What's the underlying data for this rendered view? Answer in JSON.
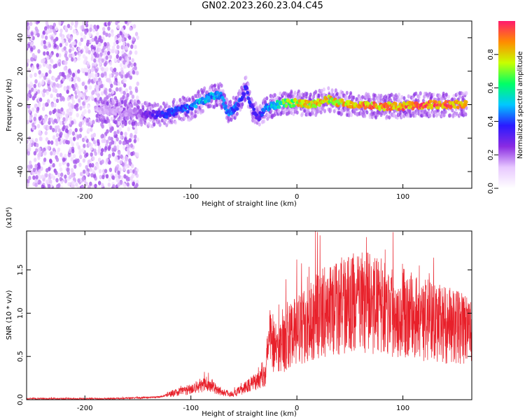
{
  "title": "GN02.2023.260.23.04.C45",
  "chart_data": [
    {
      "type": "heatmap",
      "xlabel": "Height of straight line (km)",
      "ylabel": "Frequency (Hz)",
      "xlim": [
        -255,
        165
      ],
      "ylim": [
        -50,
        50
      ],
      "xticks": [
        -200,
        -100,
        0,
        100
      ],
      "yticks": [
        -40,
        -20,
        0,
        20,
        40
      ],
      "colorbar": {
        "label": "Normalized spectral amplitude",
        "ticks": [
          0.0,
          0.2,
          0.4,
          0.6,
          0.8
        ],
        "range": [
          0,
          1
        ],
        "colors": [
          "#ffffff",
          "#e8c8ff",
          "#8a2be2",
          "#2a1aff",
          "#00c8ff",
          "#00ff66",
          "#c8ff00",
          "#ff8c00",
          "#ff1a6e"
        ]
      },
      "ridge": [
        {
          "x": -190,
          "y": -3,
          "a": 0.15
        },
        {
          "x": -170,
          "y": -4,
          "a": 0.15
        },
        {
          "x": -150,
          "y": -5,
          "a": 0.2
        },
        {
          "x": -140,
          "y": -6,
          "a": 0.3
        },
        {
          "x": -130,
          "y": -6,
          "a": 0.35
        },
        {
          "x": -120,
          "y": -5,
          "a": 0.4
        },
        {
          "x": -110,
          "y": -3,
          "a": 0.4
        },
        {
          "x": -100,
          "y": -2,
          "a": 0.45
        },
        {
          "x": -90,
          "y": 2,
          "a": 0.5
        },
        {
          "x": -80,
          "y": 5,
          "a": 0.5
        },
        {
          "x": -72,
          "y": 6,
          "a": 0.45
        },
        {
          "x": -65,
          "y": -5,
          "a": 0.45
        },
        {
          "x": -55,
          "y": 0,
          "a": 0.4
        },
        {
          "x": -48,
          "y": 10,
          "a": 0.4
        },
        {
          "x": -42,
          "y": -3,
          "a": 0.35
        },
        {
          "x": -36,
          "y": -8,
          "a": 0.35
        },
        {
          "x": -30,
          "y": -2,
          "a": 0.45
        },
        {
          "x": -20,
          "y": 0,
          "a": 0.55
        },
        {
          "x": -10,
          "y": 1,
          "a": 0.7
        },
        {
          "x": 0,
          "y": 1,
          "a": 0.8
        },
        {
          "x": 10,
          "y": 0,
          "a": 0.85
        },
        {
          "x": 20,
          "y": 1,
          "a": 0.85
        },
        {
          "x": 30,
          "y": 3,
          "a": 0.8
        },
        {
          "x": 40,
          "y": 1,
          "a": 0.85
        },
        {
          "x": 60,
          "y": 0,
          "a": 0.9
        },
        {
          "x": 80,
          "y": -1,
          "a": 0.9
        },
        {
          "x": 100,
          "y": -1,
          "a": 0.9
        },
        {
          "x": 120,
          "y": 0,
          "a": 0.95
        },
        {
          "x": 140,
          "y": 0,
          "a": 0.95
        },
        {
          "x": 160,
          "y": 0,
          "a": 0.9
        }
      ]
    },
    {
      "type": "line",
      "xlabel": "Height of straight line (km)",
      "ylabel": "SNR (10 * v/v)",
      "y_multiplier": "(x10⁴)",
      "xlim": [
        -255,
        165
      ],
      "ylim": [
        0.0,
        1.95
      ],
      "xticks": [
        -200,
        -100,
        0,
        100
      ],
      "yticks": [
        0.0,
        0.5,
        1.0,
        1.5
      ],
      "line_color": "#e8202a",
      "series": [
        {
          "x": [
            -255,
            -220,
            -180,
            -150,
            -130,
            -120,
            -110,
            -100,
            -90,
            -80,
            -70,
            -60,
            -50,
            -40,
            -30,
            -25,
            -20,
            -10,
            0,
            10,
            20,
            30,
            40,
            50,
            60,
            70,
            80,
            90,
            100,
            110,
            120,
            130,
            140,
            150,
            160,
            165
          ],
          "values": [
            0.01,
            0.01,
            0.01,
            0.02,
            0.03,
            0.06,
            0.09,
            0.12,
            0.16,
            0.15,
            0.08,
            0.06,
            0.12,
            0.2,
            0.3,
            0.75,
            0.55,
            0.65,
            0.75,
            0.85,
            0.92,
            0.98,
            1.02,
            1.05,
            1.08,
            1.05,
            1.02,
            0.98,
            0.95,
            0.92,
            0.88,
            0.85,
            0.82,
            0.8,
            0.76,
            0.7
          ]
        }
      ]
    }
  ]
}
